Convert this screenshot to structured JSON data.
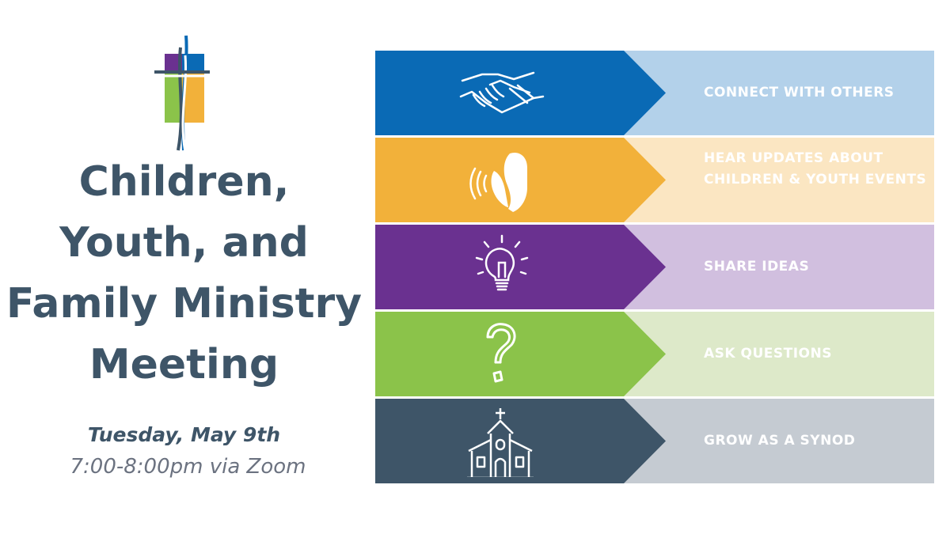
{
  "title_lines": [
    "Children,",
    "Youth, and",
    "Family Ministry",
    "Meeting"
  ],
  "date": "Tuesday, May 9th",
  "time": "7:00-8:00pm via Zoom",
  "colors": {
    "title": "#3e5568",
    "time": "#6b7280"
  },
  "rows": [
    {
      "label": "CONNECT WITH OTHERS",
      "icon": "handshake-icon",
      "dark": "#0a6ab5",
      "light": "#b3d1ea"
    },
    {
      "label": "HEAR UPDATES ABOUT CHILDREN & YOUTH EVENTS",
      "icon": "listening-icon",
      "dark": "#f2b13a",
      "light": "#fbe6c2"
    },
    {
      "label": "SHARE IDEAS",
      "icon": "lightbulb-icon",
      "dark": "#6a3190",
      "light": "#d1bfdf"
    },
    {
      "label": "ASK QUESTIONS",
      "icon": "question-mark-icon",
      "dark": "#8bc34a",
      "light": "#dde9c9"
    },
    {
      "label": "GROW AS A SYNOD",
      "icon": "church-icon",
      "dark": "#3e5568",
      "light": "#c5cbd2"
    }
  ]
}
